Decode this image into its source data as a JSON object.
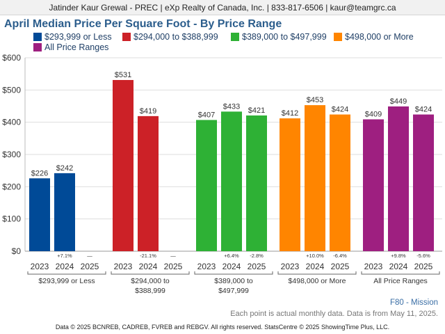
{
  "header": {
    "text": "Jatinder Kaur Grewal - PREC | eXp Realty of Canada, Inc. | 833-817-6506 | kaur@teamgrc.ca"
  },
  "title": "April Median Price Per Square Foot - By Price Range",
  "chart_data": {
    "type": "bar",
    "title": "April Median Price Per Square Foot - By Price Range",
    "ylim": [
      0,
      600
    ],
    "yticks": [
      "$0",
      "$100",
      "$200",
      "$300",
      "$400",
      "$500",
      "$600"
    ],
    "grid": true,
    "legend_position": "top",
    "years": [
      "2023",
      "2024",
      "2025"
    ],
    "groups": [
      {
        "name": "$293,999 or Less",
        "axis_label": [
          "$293,999 or Less"
        ],
        "color": "#004a97",
        "values": [
          226,
          242,
          null
        ],
        "labels": [
          "$226",
          "$242",
          ""
        ],
        "changes": [
          "",
          "+7.1%",
          "—"
        ]
      },
      {
        "name": "$294,000 to $388,999",
        "axis_label": [
          "$294,000 to",
          "$388,999"
        ],
        "color": "#cc2127",
        "values": [
          531,
          419,
          null
        ],
        "labels": [
          "$531",
          "$419",
          ""
        ],
        "changes": [
          "",
          "-21.1%",
          "—"
        ]
      },
      {
        "name": "$389,000 to $497,999",
        "axis_label": [
          "$389,000 to",
          "$497,999"
        ],
        "color": "#2eb135",
        "values": [
          407,
          433,
          421
        ],
        "labels": [
          "$407",
          "$433",
          "$421"
        ],
        "changes": [
          "",
          "+6.4%",
          "-2.8%"
        ]
      },
      {
        "name": "$498,000 or More",
        "axis_label": [
          "$498,000 or More"
        ],
        "color": "#ff8500",
        "values": [
          412,
          453,
          424
        ],
        "labels": [
          "$412",
          "$453",
          "$424"
        ],
        "changes": [
          "",
          "+10.0%",
          "-6.4%"
        ]
      },
      {
        "name": "All Price Ranges",
        "axis_label": [
          "All Price Ranges"
        ],
        "color": "#9e1f80",
        "values": [
          409,
          449,
          424
        ],
        "labels": [
          "$409",
          "$449",
          "$424"
        ],
        "changes": [
          "",
          "+9.8%",
          "-5.6%"
        ]
      }
    ]
  },
  "source_label": "F80 - Mission",
  "note": "Each point is actual monthly data. Data is from May 11, 2025.",
  "footer": "Data © 2025 BCNREB, CADREB, FVREB and REBGV. All rights reserved. StatsCentre © 2025 ShowingTime Plus, LLC."
}
